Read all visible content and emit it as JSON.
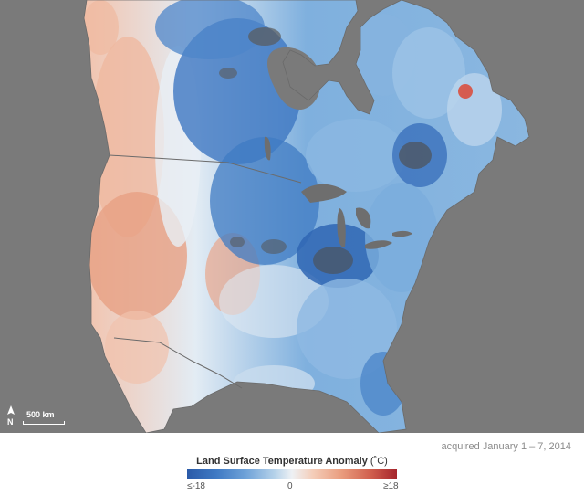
{
  "map": {
    "scalebar_label": "500 km",
    "north_label": "N",
    "colors": {
      "ocean": "#7a7a7a",
      "cold_strong": "#2a5aa8",
      "cold": "#6fa2d8",
      "neutral": "#eef1f4",
      "warm": "#e99b7c",
      "warm_strong": "#a5252c",
      "no_data": "#555555"
    }
  },
  "acquired_text": "acquired January 1 – 7, 2014",
  "legend": {
    "title": "Land Surface Temperature Anomaly",
    "unit": "(˚C)",
    "min_label": "≤-18",
    "mid_label": "0",
    "max_label": "≥18"
  }
}
